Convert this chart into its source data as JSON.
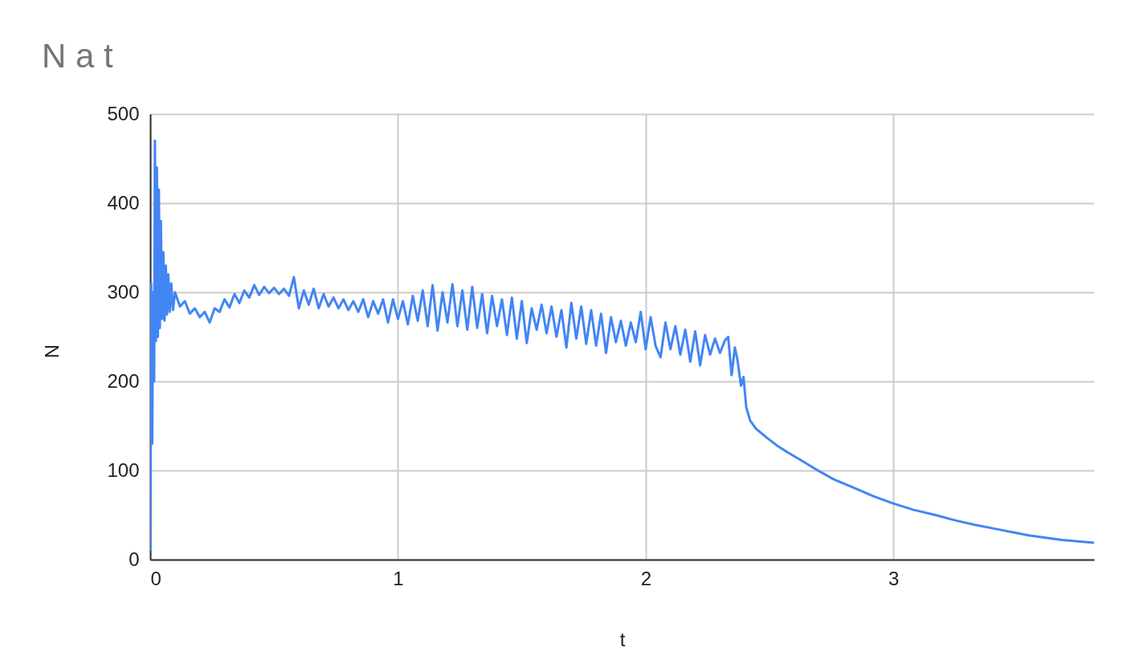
{
  "chart_data": {
    "type": "line",
    "title": "N a t",
    "xlabel": "t",
    "ylabel": "N",
    "color": "#4285f4",
    "x": [
      0,
      0.004,
      0.008,
      0.012,
      0.016,
      0.019,
      0.023,
      0.027,
      0.031,
      0.035,
      0.039,
      0.043,
      0.048,
      0.053,
      0.058,
      0.063,
      0.068,
      0.073,
      0.079,
      0.085,
      0.092,
      0.1,
      0.12,
      0.14,
      0.16,
      0.18,
      0.2,
      0.22,
      0.24,
      0.26,
      0.28,
      0.3,
      0.32,
      0.34,
      0.36,
      0.38,
      0.4,
      0.42,
      0.44,
      0.46,
      0.48,
      0.5,
      0.52,
      0.54,
      0.56,
      0.58,
      0.6,
      0.62,
      0.64,
      0.66,
      0.68,
      0.7,
      0.72,
      0.74,
      0.76,
      0.78,
      0.8,
      0.82,
      0.84,
      0.86,
      0.88,
      0.9,
      0.92,
      0.94,
      0.96,
      0.98,
      1.0,
      1.02,
      1.04,
      1.06,
      1.08,
      1.1,
      1.12,
      1.14,
      1.16,
      1.18,
      1.2,
      1.22,
      1.24,
      1.26,
      1.28,
      1.3,
      1.32,
      1.34,
      1.36,
      1.38,
      1.4,
      1.42,
      1.44,
      1.46,
      1.48,
      1.5,
      1.52,
      1.54,
      1.56,
      1.58,
      1.6,
      1.62,
      1.64,
      1.66,
      1.68,
      1.7,
      1.72,
      1.74,
      1.76,
      1.78,
      1.8,
      1.82,
      1.84,
      1.86,
      1.88,
      1.9,
      1.92,
      1.94,
      1.96,
      1.98,
      2.0,
      2.02,
      2.04,
      2.06,
      2.08,
      2.1,
      2.12,
      2.14,
      2.16,
      2.18,
      2.2,
      2.22,
      2.24,
      2.26,
      2.28,
      2.3,
      2.32,
      2.333,
      2.347,
      2.36,
      2.37,
      2.385,
      2.395,
      2.406,
      2.422,
      2.445,
      2.488,
      2.53,
      2.575,
      2.63,
      2.683,
      2.76,
      2.845,
      2.92,
      3.0,
      3.08,
      3.17,
      3.25,
      3.33,
      3.44,
      3.55,
      3.68,
      3.81
    ],
    "values": [
      10,
      310,
      130,
      300,
      200,
      470,
      245,
      440,
      250,
      415,
      260,
      380,
      270,
      345,
      268,
      330,
      275,
      320,
      278,
      310,
      280,
      300,
      284,
      290,
      276,
      282,
      272,
      278,
      266,
      282,
      278,
      292,
      283,
      298,
      288,
      302,
      294,
      308,
      297,
      306,
      299,
      305,
      298,
      304,
      296,
      317,
      282,
      302,
      286,
      304,
      282,
      298,
      284,
      294,
      282,
      292,
      280,
      290,
      278,
      292,
      272,
      290,
      276,
      292,
      266,
      292,
      270,
      290,
      264,
      296,
      268,
      302,
      262,
      308,
      257,
      300,
      266,
      309,
      262,
      302,
      258,
      306,
      260,
      298,
      254,
      296,
      262,
      292,
      252,
      294,
      248,
      290,
      243,
      282,
      258,
      286,
      254,
      284,
      250,
      280,
      238,
      288,
      248,
      284,
      242,
      280,
      240,
      276,
      232,
      272,
      244,
      268,
      240,
      266,
      244,
      278,
      236,
      272,
      240,
      227,
      266,
      236,
      262,
      230,
      258,
      222,
      256,
      218,
      252,
      230,
      248,
      232,
      246,
      250,
      207,
      238,
      225,
      195,
      205,
      171,
      156,
      147,
      137,
      128,
      120,
      111,
      102,
      90,
      80,
      71,
      63,
      56,
      50,
      44,
      39,
      33,
      27,
      22,
      19
    ],
    "xlim": [
      0,
      3.81
    ],
    "xticks": [
      0,
      1,
      2,
      3
    ],
    "ylim": [
      0,
      500
    ],
    "yticks": [
      0,
      100,
      200,
      300,
      400,
      500
    ],
    "grid": true
  }
}
